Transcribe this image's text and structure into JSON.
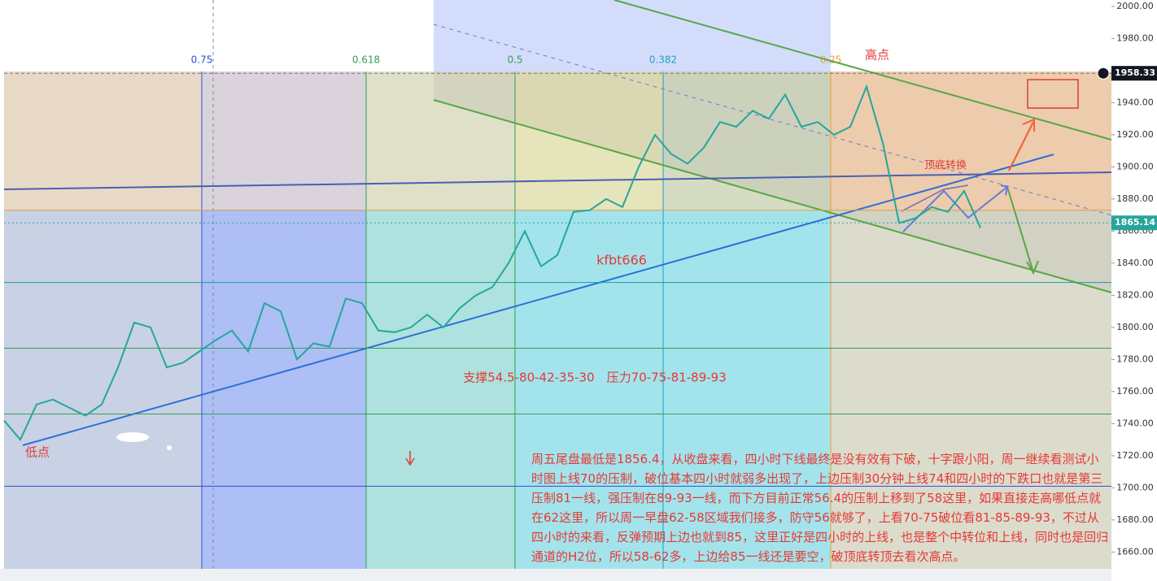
{
  "chart_data": {
    "type": "line",
    "values": [
      1742,
      1730,
      1752,
      1755,
      1750,
      1745,
      1752,
      1775,
      1803,
      1800,
      1775,
      1778,
      1785,
      1792,
      1798,
      1785,
      1815,
      1810,
      1780,
      1790,
      1788,
      1818,
      1815,
      1798,
      1797,
      1800,
      1808,
      1800,
      1812,
      1820,
      1825,
      1840,
      1860,
      1838,
      1845,
      1872,
      1873,
      1880,
      1875,
      1900,
      1920,
      1908,
      1902,
      1912,
      1928,
      1925,
      1935,
      1930,
      1945,
      1925,
      1928,
      1920,
      1925,
      1950,
      1915,
      1865,
      1868,
      1875,
      1872,
      1885,
      1862
    ],
    "color": "#26a69a",
    "ylim": [
      1646,
      2004
    ],
    "yticks": [
      {
        "value": 1660,
        "label": "1660.00"
      },
      {
        "value": 1680,
        "label": "1680.00"
      },
      {
        "value": 1700,
        "label": "1700.00"
      },
      {
        "value": 1720,
        "label": "1720.00"
      },
      {
        "value": 1740,
        "label": "1740.00"
      },
      {
        "value": 1760,
        "label": "1760.00"
      },
      {
        "value": 1780,
        "label": "1780.00"
      },
      {
        "value": 1800,
        "label": "1800.00"
      },
      {
        "value": 1820,
        "label": "1820.00"
      },
      {
        "value": 1840,
        "label": "1840.00"
      },
      {
        "value": 1860,
        "label": "1860.00"
      },
      {
        "value": 1880,
        "label": "1880.00"
      },
      {
        "value": 1900,
        "label": "1900.00"
      },
      {
        "value": 1920,
        "label": "1920.00"
      },
      {
        "value": 1940,
        "label": "1940.00"
      },
      {
        "value": 1960,
        "label": "1960.00"
      },
      {
        "value": 1980,
        "label": "1980.00"
      },
      {
        "value": 2000,
        "label": "2000.00"
      }
    ],
    "high_price": 1958.33,
    "last_price": 1865.14,
    "levels": [
      1873,
      1828,
      1787,
      1746,
      1701
    ],
    "fib_levels": [
      0.75,
      0.618,
      0.5,
      0.382,
      0.25
    ],
    "annotations": {
      "high": "高点",
      "low": "低点",
      "switch": "顶底转换",
      "watermark": "kfbt666",
      "support": "支撑54.5-80-42-35-30　压力70-75-81-89-93",
      "note": "周五尾盘最低是1856.4，从收盘来看，四小时下线最终是没有效有下破，十字跟小阳，周一继续看测试小时图上线70的压制，破位基本四小时就弱多出现了，上边压制30分钟上线74和四小时的下跌口也就是第三压制81一线，强压制在89-93一线，而下方目前正常56.4的压制上移到了58这里，如果直接走高哪低点就在62这里，所以周一早盘62-58区域我们接多，防守56就够了，上看70-75破位看81-85-89-93，不过从四小时的来看，反弹预期上边也就到85，这里正好是四小时的上线，也是整个中转位和上线，同时也是回归通道的H2位，所以58-62多，上边给85一线还是要空，破顶底转顶去看次高点。"
    }
  }
}
